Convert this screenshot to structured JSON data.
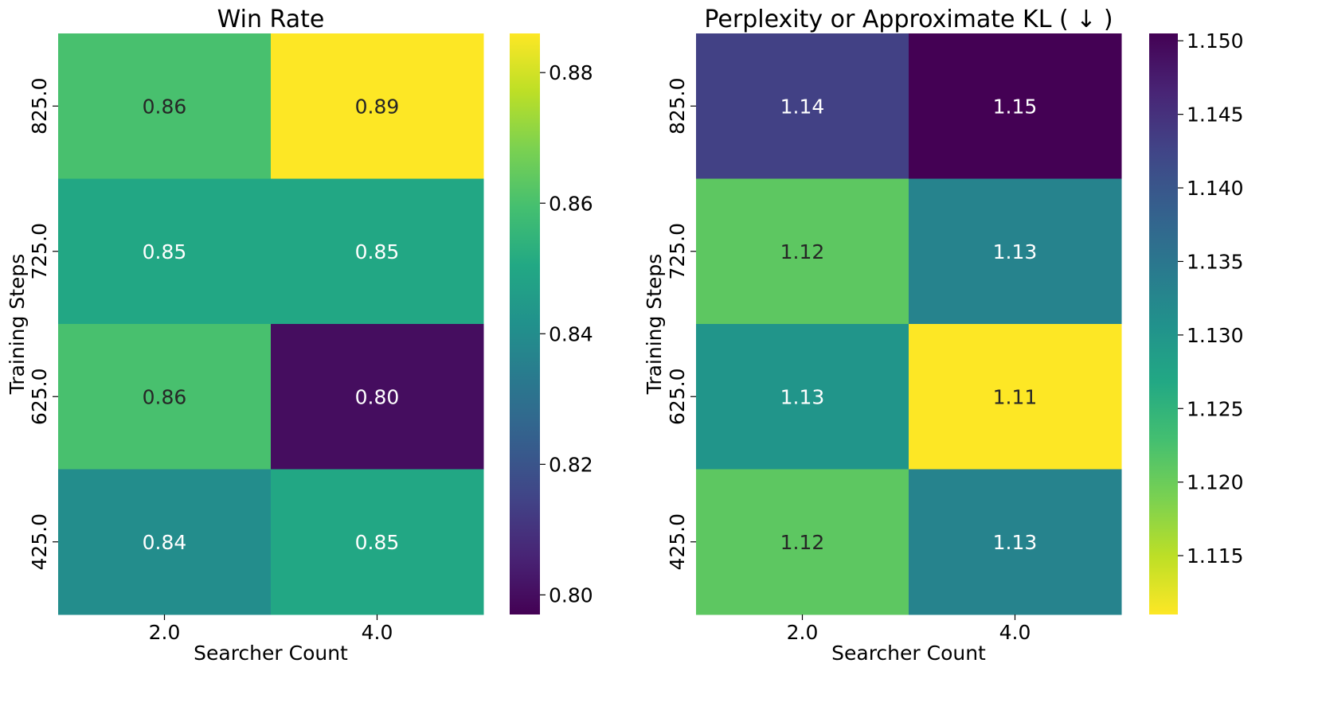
{
  "chart_data": [
    {
      "type": "heatmap",
      "title": "Win Rate",
      "xlabel": "Searcher Count",
      "ylabel": "Training Steps",
      "x_categories": [
        "2.0",
        "4.0"
      ],
      "y_categories": [
        "825.0",
        "725.0",
        "625.0",
        "425.0"
      ],
      "values": [
        [
          0.86,
          0.89
        ],
        [
          0.85,
          0.85
        ],
        [
          0.86,
          0.8
        ],
        [
          0.84,
          0.85
        ]
      ],
      "value_labels": [
        [
          "0.86",
          "0.89"
        ],
        [
          "0.85",
          "0.85"
        ],
        [
          "0.86",
          "0.80"
        ],
        [
          "0.84",
          "0.85"
        ]
      ],
      "colormap": "viridis",
      "reversed": false,
      "vmin": 0.797,
      "vmax": 0.886,
      "colorbar_ticks": [
        0.8,
        0.82,
        0.84,
        0.86,
        0.88
      ],
      "colorbar_tick_labels": [
        "0.80",
        "0.82",
        "0.84",
        "0.86",
        "0.88"
      ]
    },
    {
      "type": "heatmap",
      "title": "Perplexity or Approximate KL ( ↓ )",
      "xlabel": "Searcher Count",
      "ylabel": "Training Steps",
      "x_categories": [
        "2.0",
        "4.0"
      ],
      "y_categories": [
        "825.0",
        "725.0",
        "625.0",
        "425.0"
      ],
      "values": [
        [
          1.143,
          1.151
        ],
        [
          1.121,
          1.133
        ],
        [
          1.13,
          1.111
        ],
        [
          1.121,
          1.133
        ]
      ],
      "value_labels": [
        [
          "1.14",
          "1.15"
        ],
        [
          "1.12",
          "1.13"
        ],
        [
          "1.13",
          "1.11"
        ],
        [
          "1.12",
          "1.13"
        ]
      ],
      "colormap": "viridis",
      "reversed": true,
      "vmin": 1.111,
      "vmax": 1.1505,
      "colorbar_ticks": [
        1.115,
        1.12,
        1.125,
        1.13,
        1.135,
        1.14,
        1.145,
        1.15
      ],
      "colorbar_tick_labels": [
        "1.115",
        "1.120",
        "1.125",
        "1.130",
        "1.135",
        "1.140",
        "1.145",
        "1.150"
      ]
    }
  ]
}
